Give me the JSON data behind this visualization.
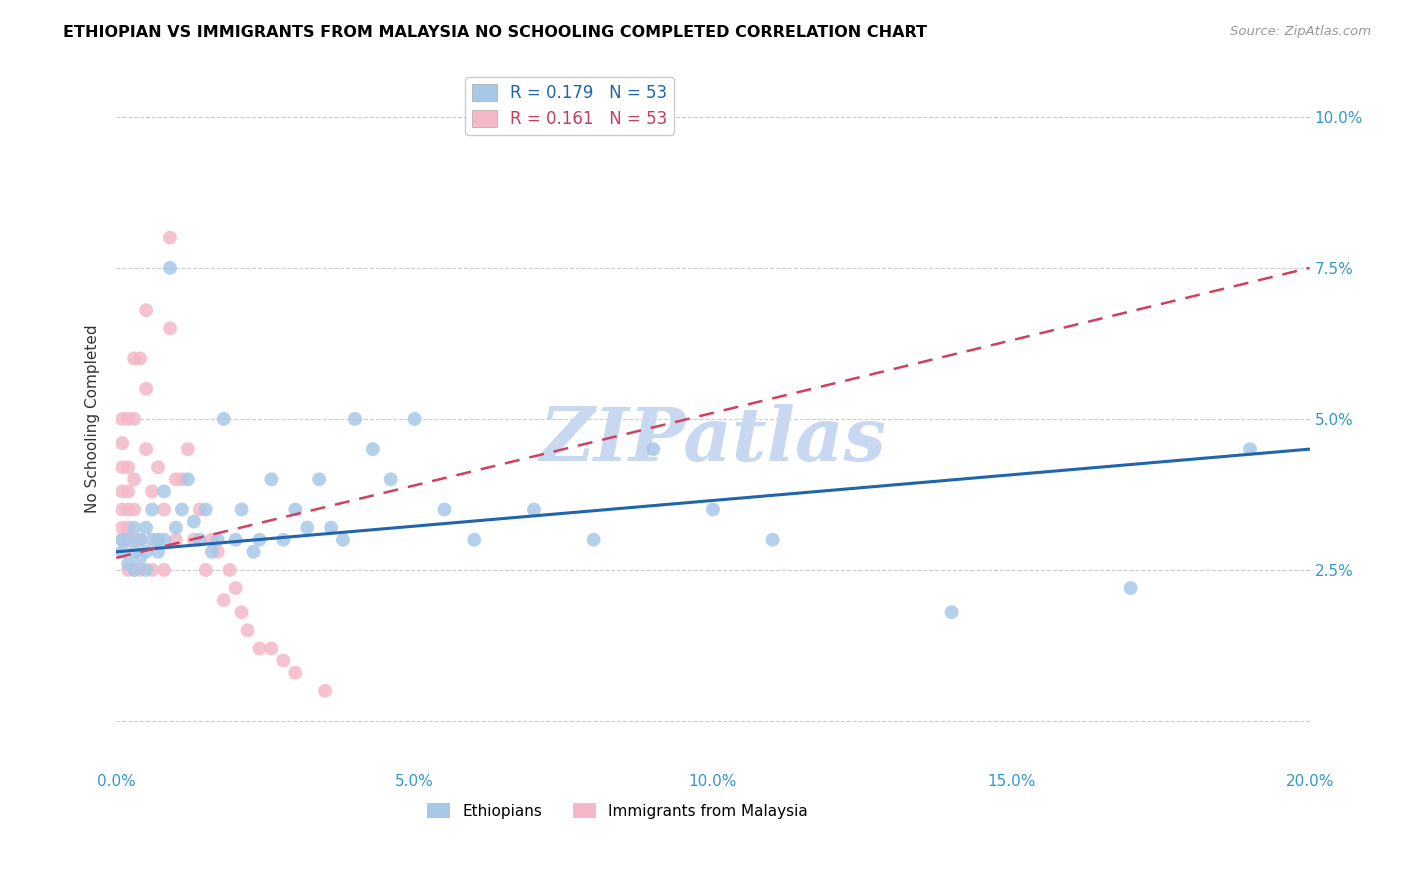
{
  "title": "ETHIOPIAN VS IMMIGRANTS FROM MALAYSIA NO SCHOOLING COMPLETED CORRELATION CHART",
  "source": "Source: ZipAtlas.com",
  "xlabel_ticks": [
    0.0,
    0.05,
    0.1,
    0.15,
    0.2
  ],
  "xlabel_labels": [
    "0.0%",
    "5.0%",
    "10.0%",
    "15.0%",
    "20.0%"
  ],
  "ylabel_ticks": [
    0.0,
    0.025,
    0.05,
    0.075,
    0.1
  ],
  "ylabel_labels": [
    "",
    "2.5%",
    "5.0%",
    "7.5%",
    "10.0%"
  ],
  "xlim": [
    0.0,
    0.2
  ],
  "ylim": [
    -0.008,
    0.108
  ],
  "ylabel": "No Schooling Completed",
  "series1_name": "Ethiopians",
  "series2_name": "Immigrants from Malaysia",
  "series1_color": "#a8c8e8",
  "series2_color": "#f4b8c8",
  "trendline1_color": "#2166ac",
  "trendline2_color": "#d04060",
  "trendline2_dash": [
    6,
    4
  ],
  "watermark": "ZIPatlas",
  "watermark_color": "#c8d8f0",
  "legend1_label_r": "R = 0.179",
  "legend1_label_n": "N = 53",
  "legend2_label_r": "R = 0.161",
  "legend2_label_n": "N = 53",
  "ethiopians_x": [
    0.001,
    0.001,
    0.002,
    0.002,
    0.003,
    0.003,
    0.003,
    0.004,
    0.004,
    0.005,
    0.005,
    0.005,
    0.006,
    0.006,
    0.007,
    0.007,
    0.008,
    0.008,
    0.009,
    0.01,
    0.011,
    0.012,
    0.013,
    0.014,
    0.015,
    0.016,
    0.017,
    0.018,
    0.02,
    0.021,
    0.023,
    0.024,
    0.026,
    0.028,
    0.03,
    0.032,
    0.034,
    0.036,
    0.038,
    0.04,
    0.043,
    0.046,
    0.05,
    0.055,
    0.06,
    0.07,
    0.08,
    0.09,
    0.1,
    0.11,
    0.14,
    0.17,
    0.19
  ],
  "ethiopians_y": [
    0.028,
    0.03,
    0.026,
    0.03,
    0.025,
    0.028,
    0.032,
    0.027,
    0.03,
    0.025,
    0.028,
    0.032,
    0.03,
    0.035,
    0.028,
    0.03,
    0.03,
    0.038,
    0.075,
    0.032,
    0.035,
    0.04,
    0.033,
    0.03,
    0.035,
    0.028,
    0.03,
    0.05,
    0.03,
    0.035,
    0.028,
    0.03,
    0.04,
    0.03,
    0.035,
    0.032,
    0.04,
    0.032,
    0.03,
    0.05,
    0.045,
    0.04,
    0.05,
    0.035,
    0.03,
    0.035,
    0.03,
    0.045,
    0.035,
    0.03,
    0.018,
    0.022,
    0.045
  ],
  "malaysia_x": [
    0.001,
    0.001,
    0.001,
    0.001,
    0.001,
    0.001,
    0.001,
    0.002,
    0.002,
    0.002,
    0.002,
    0.002,
    0.002,
    0.002,
    0.003,
    0.003,
    0.003,
    0.003,
    0.003,
    0.003,
    0.004,
    0.004,
    0.004,
    0.005,
    0.005,
    0.005,
    0.006,
    0.006,
    0.007,
    0.007,
    0.008,
    0.008,
    0.009,
    0.009,
    0.01,
    0.01,
    0.011,
    0.012,
    0.013,
    0.014,
    0.015,
    0.016,
    0.017,
    0.018,
    0.019,
    0.02,
    0.021,
    0.022,
    0.024,
    0.026,
    0.028,
    0.03,
    0.035
  ],
  "malaysia_y": [
    0.03,
    0.032,
    0.035,
    0.038,
    0.042,
    0.046,
    0.05,
    0.025,
    0.03,
    0.032,
    0.035,
    0.038,
    0.042,
    0.05,
    0.025,
    0.03,
    0.035,
    0.04,
    0.05,
    0.06,
    0.025,
    0.03,
    0.06,
    0.045,
    0.055,
    0.068,
    0.025,
    0.038,
    0.03,
    0.042,
    0.025,
    0.035,
    0.065,
    0.08,
    0.03,
    0.04,
    0.04,
    0.045,
    0.03,
    0.035,
    0.025,
    0.03,
    0.028,
    0.02,
    0.025,
    0.022,
    0.018,
    0.015,
    0.012,
    0.012,
    0.01,
    0.008,
    0.005
  ]
}
